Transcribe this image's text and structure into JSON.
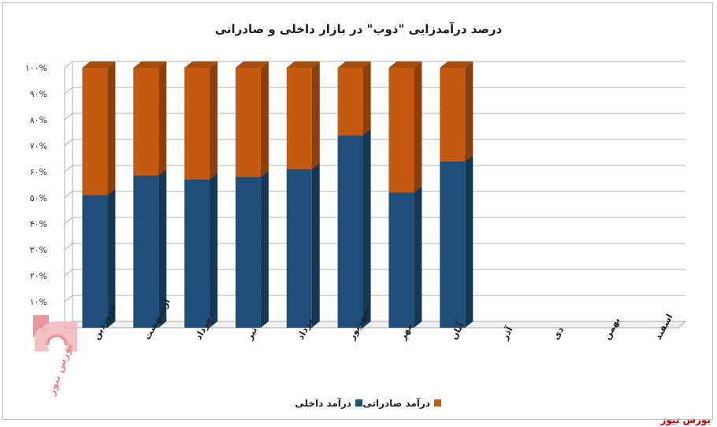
{
  "chart_data": {
    "type": "bar",
    "stacked": true,
    "title": "درصد درآمدزایی \"ذوب\" در بازار داخلی و صادراتی",
    "categories": [
      "فروردین",
      "اردیبهشت",
      "خرداد",
      "تیر",
      "مرداد",
      "شهریور",
      "مهر",
      "آبان",
      "آذر",
      "دی",
      "بهمن",
      "اسفند"
    ],
    "series": [
      {
        "name": "درآمد داخلی",
        "color": "#1f4e79",
        "values": [
          51,
          58.5,
          57,
          58,
          61,
          74,
          52,
          64,
          null,
          null,
          null,
          null
        ]
      },
      {
        "name": "درآمد صادراتی",
        "color": "#c55a11",
        "values": [
          49,
          41.5,
          43,
          42,
          39,
          26,
          48,
          36,
          null,
          null,
          null,
          null
        ]
      }
    ],
    "ylim": [
      0,
      100
    ],
    "yticks": [
      "۰%",
      "۱۰%",
      "۲۰%",
      "۳۰%",
      "۴۰%",
      "۵۰%",
      "۶۰%",
      "۷۰%",
      "۸۰%",
      "۹۰%",
      "۱۰۰%"
    ],
    "grid": true,
    "legend_position": "bottom"
  },
  "source_label": "بورس نیوز",
  "watermark_text": "بورس نیوز"
}
